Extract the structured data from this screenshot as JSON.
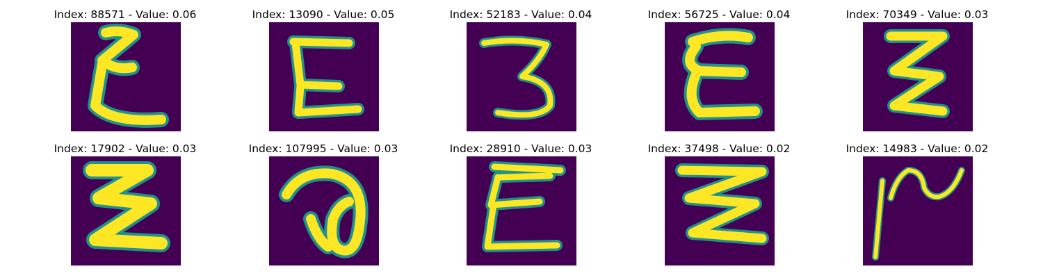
{
  "panels": [
    {
      "title": "Index: 88571 - Value: 0.06"
    },
    {
      "title": "Index: 13090 - Value: 0.05"
    },
    {
      "title": "Index: 52183 - Value: 0.04"
    },
    {
      "title": "Index: 56725 - Value: 0.04"
    },
    {
      "title": "Index: 70349 - Value: 0.03"
    },
    {
      "title": "Index: 17902 - Value: 0.03"
    },
    {
      "title": "Index: 107995 - Value: 0.03"
    },
    {
      "title": "Index: 28910 - Value: 0.03"
    },
    {
      "title": "Index: 37498 - Value: 0.02"
    },
    {
      "title": "Index: 14983 - Value: 0.02"
    }
  ],
  "colors": {
    "background": "#440154",
    "stroke": "#fde725",
    "edge": "#21918c"
  }
}
